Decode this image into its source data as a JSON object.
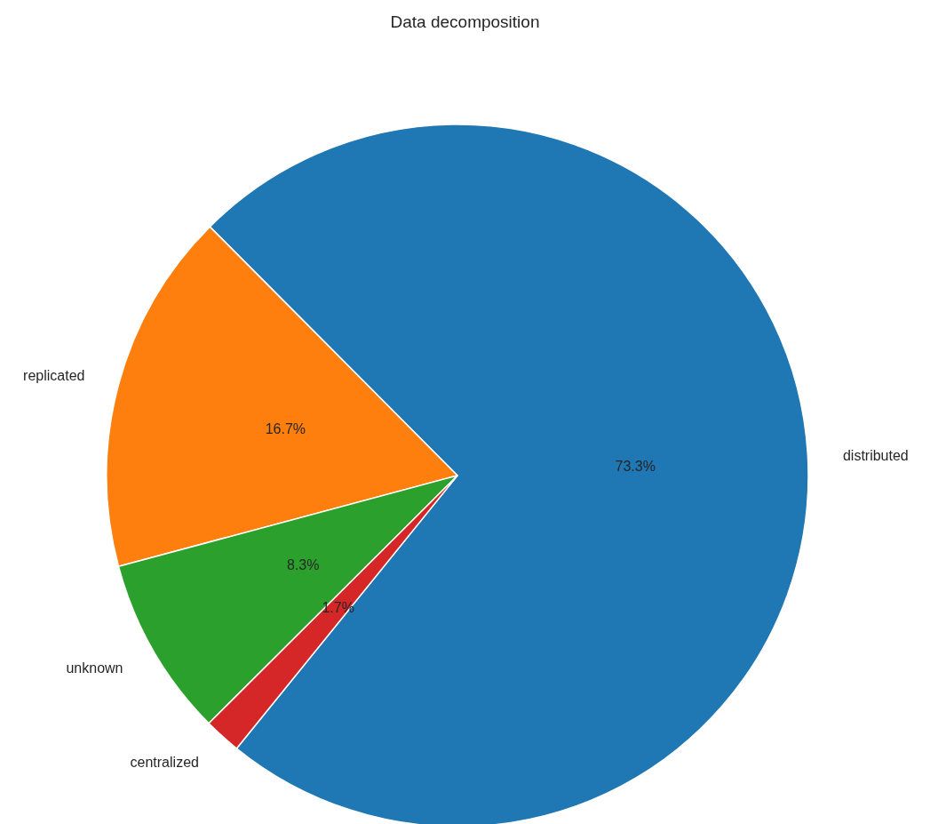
{
  "chart_data": {
    "type": "pie",
    "title": "Data decomposition",
    "categories": [
      "distributed",
      "replicated",
      "unknown",
      "centralized"
    ],
    "values": [
      73.3,
      16.7,
      8.3,
      1.7
    ],
    "colors": [
      "#1f77b4",
      "#ff7f0e",
      "#2ca02c",
      "#d62728"
    ],
    "value_labels": [
      "73.3%",
      "16.7%",
      "8.3%",
      "1.7%"
    ]
  }
}
